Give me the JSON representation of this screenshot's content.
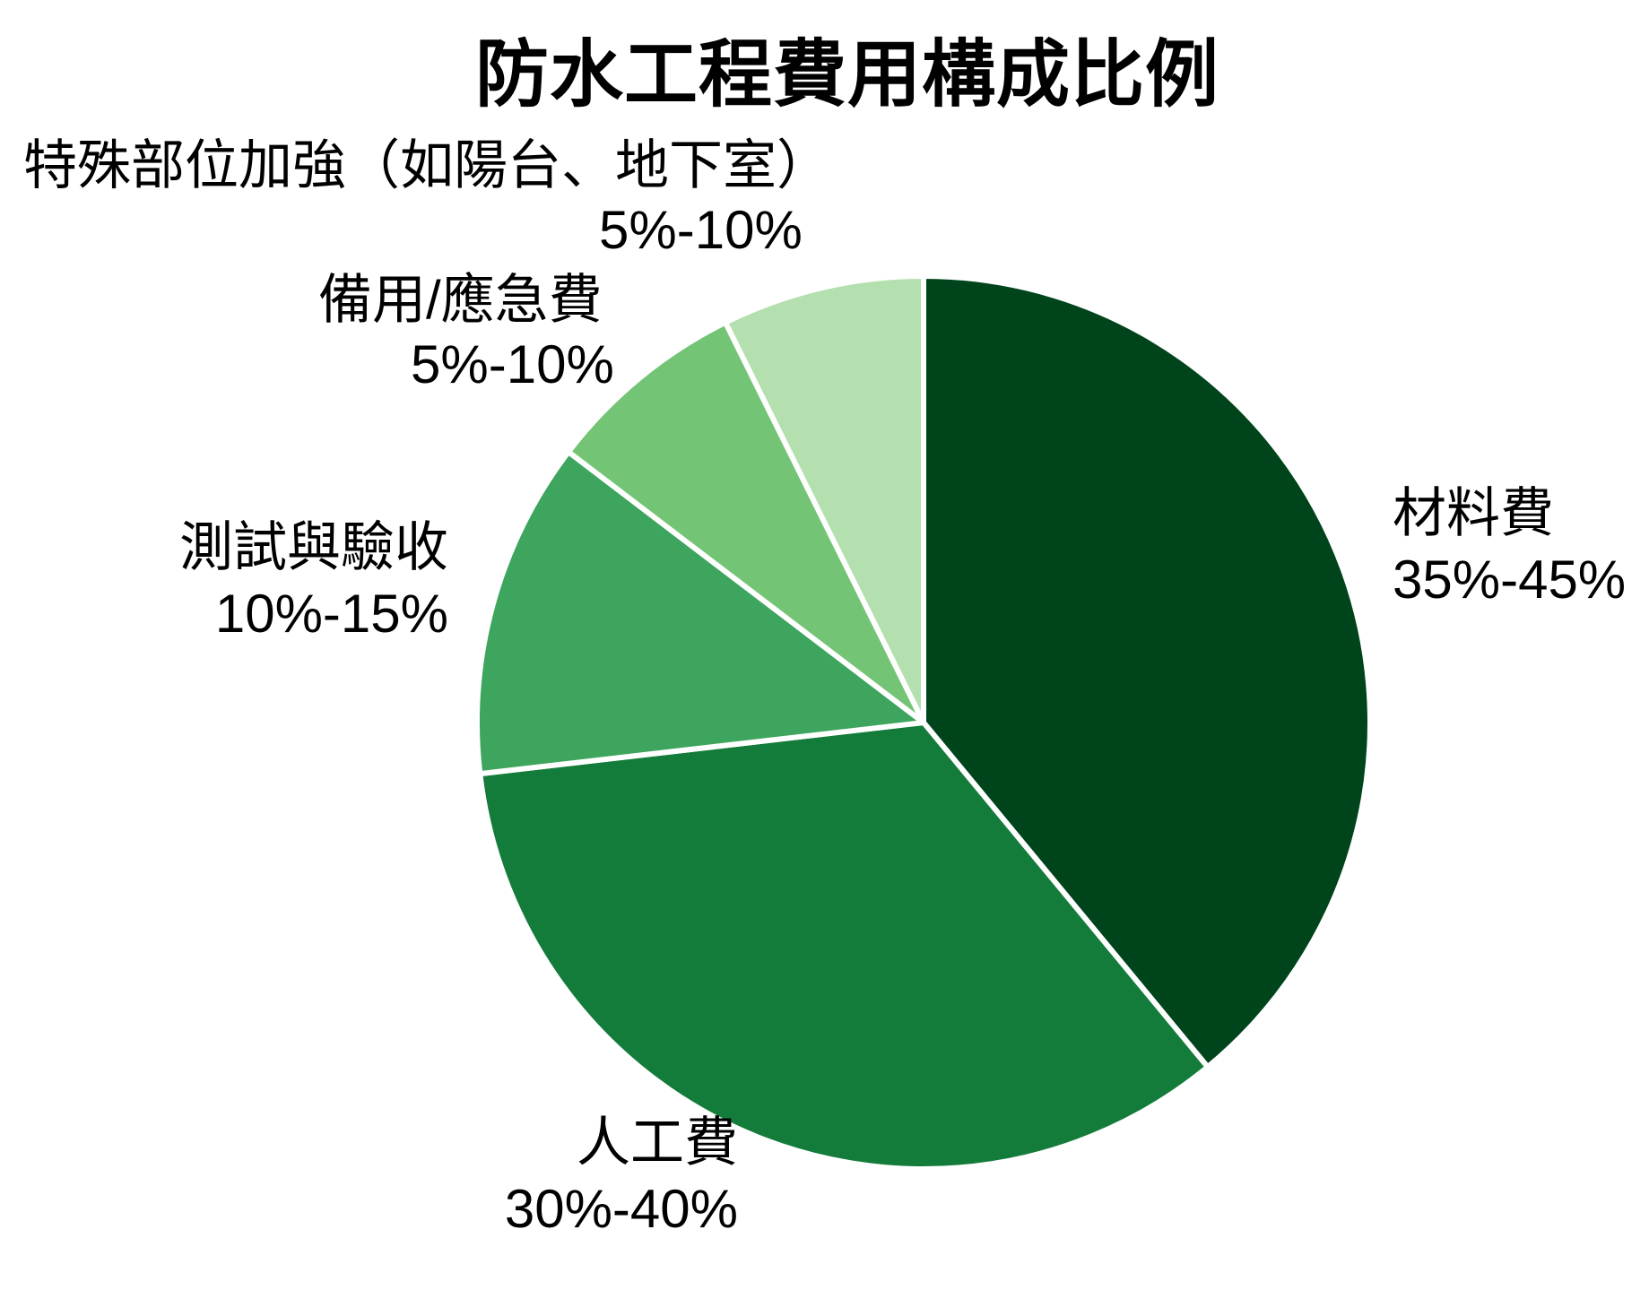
{
  "title": "防水工程費用構成比例",
  "chart_data": {
    "type": "pie",
    "title": "防水工程費用構成比例",
    "start_angle_deg": 0,
    "direction": "clockwise",
    "legend_position": "none",
    "slice_border_color": "#ffffff",
    "segments": [
      {
        "label": "材料費",
        "range": "35%-45%",
        "midpoint_value": 40,
        "fraction_pct": 39.0,
        "color": "#00441b"
      },
      {
        "label": "人工費",
        "range": "30%-40%",
        "midpoint_value": 35,
        "fraction_pct": 34.1,
        "color": "#147c3a"
      },
      {
        "label": "測試與驗收",
        "range": "10%-15%",
        "midpoint_value": 12.5,
        "fraction_pct": 12.2,
        "color": "#3da55d"
      },
      {
        "label": "備用/應急費",
        "range": "5%-10%",
        "midpoint_value": 7.5,
        "fraction_pct": 7.3,
        "color": "#74c476"
      },
      {
        "label": "特殊部位加強（如陽台、地下室）",
        "range": "5%-10%",
        "midpoint_value": 7.5,
        "fraction_pct": 7.3,
        "color": "#b3e0ae"
      }
    ]
  },
  "colors": {
    "background": "#ffffff",
    "text": "#000000",
    "slice_border": "#ffffff"
  }
}
